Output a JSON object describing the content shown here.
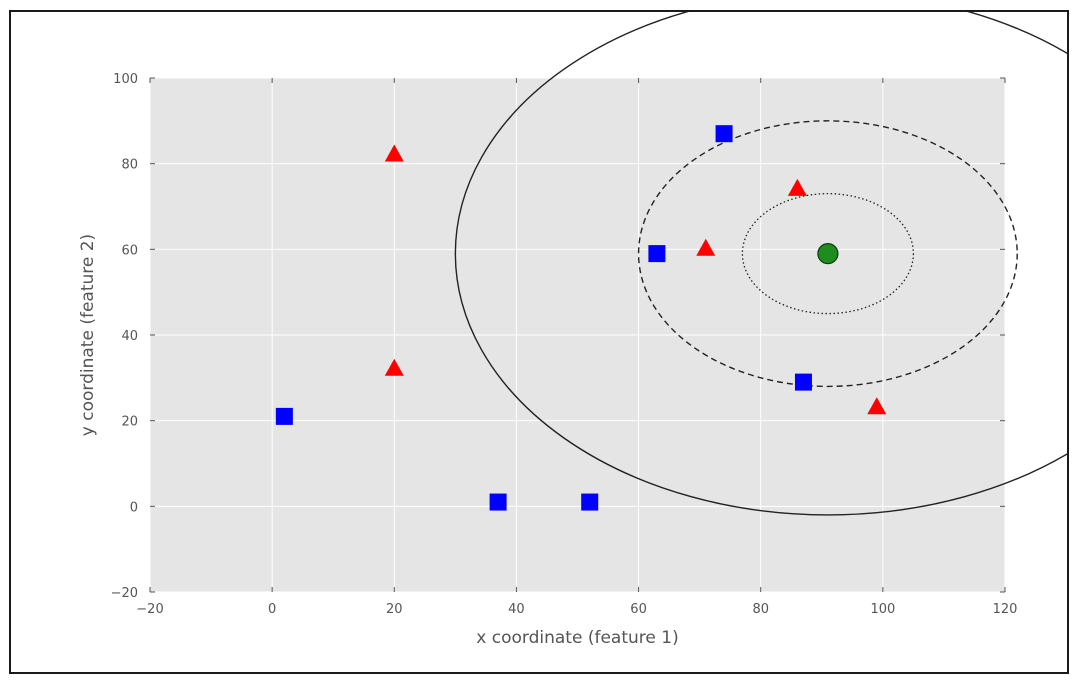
{
  "chart_data": {
    "type": "scatter",
    "xlabel": "x coordinate (feature 1)",
    "ylabel": "y coordinate (feature 2)",
    "xlim": [
      -20,
      120
    ],
    "ylim": [
      -20,
      100
    ],
    "xticks": [
      -20,
      0,
      20,
      40,
      60,
      80,
      100,
      120
    ],
    "yticks": [
      -20,
      0,
      20,
      40,
      60,
      80,
      100
    ],
    "xtick_labels": [
      "−20",
      "0",
      "20",
      "40",
      "60",
      "80",
      "100",
      "120"
    ],
    "ytick_labels": [
      "−20",
      "0",
      "20",
      "40",
      "60",
      "80",
      "100"
    ],
    "grid": true,
    "background": "#e5e5e5",
    "series": [
      {
        "marker": "square",
        "color": "#0000ff",
        "points": [
          [
            2,
            21
          ],
          [
            37,
            1
          ],
          [
            52,
            1
          ],
          [
            63,
            59
          ],
          [
            74,
            87
          ],
          [
            87,
            29
          ]
        ]
      },
      {
        "marker": "triangle",
        "color": "#ff0000",
        "points": [
          [
            20,
            82
          ],
          [
            20,
            32
          ],
          [
            71,
            60
          ],
          [
            86,
            74
          ],
          [
            99,
            23
          ]
        ]
      },
      {
        "marker": "circle",
        "color": "#1e8c1e",
        "points": [
          [
            91,
            59
          ]
        ]
      }
    ],
    "circles": [
      {
        "center": [
          91,
          59
        ],
        "radius": 14,
        "style": "dotted"
      },
      {
        "center": [
          91,
          59
        ],
        "radius": 31,
        "style": "dashed"
      },
      {
        "center": [
          91,
          59
        ],
        "radius": 61,
        "style": "solid"
      }
    ]
  }
}
